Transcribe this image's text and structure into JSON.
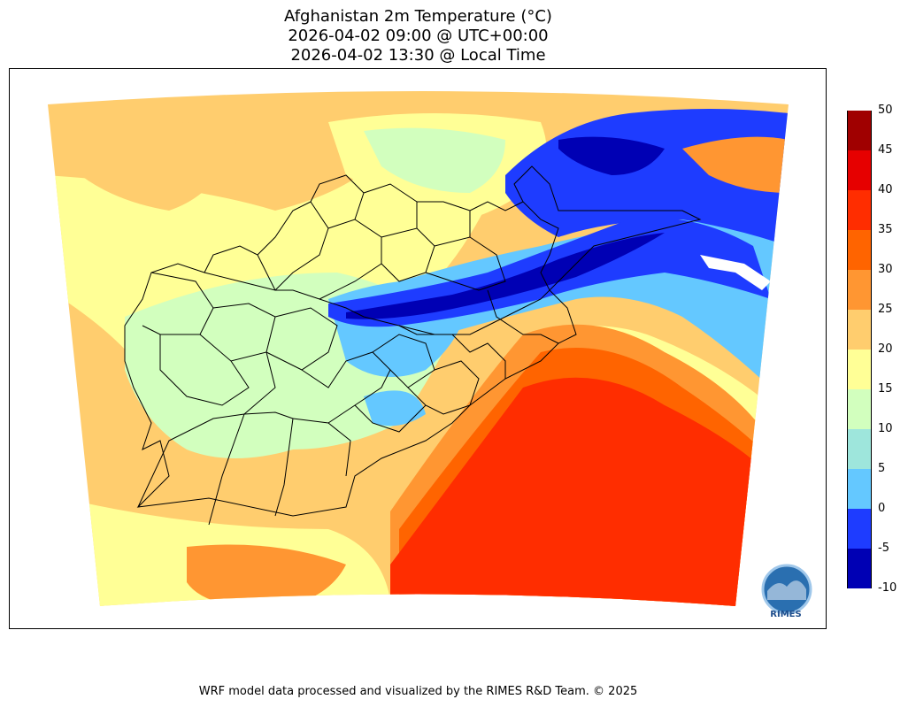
{
  "title": {
    "line1": "Afghanistan 2m Temperature (°C)",
    "line2": "2026-04-02 09:00 @ UTC+00:00",
    "line3": "2026-04-02 13:30 @ Local Time"
  },
  "colorbar": {
    "ticks": [
      "50",
      "45",
      "40",
      "35",
      "30",
      "25",
      "20",
      "15",
      "10",
      "5",
      "0",
      "-5",
      "-10"
    ],
    "levels": [
      {
        "from": -10,
        "to": -5,
        "color": "#0000b4"
      },
      {
        "from": -5,
        "to": 0,
        "color": "#1e3cff"
      },
      {
        "from": 0,
        "to": 5,
        "color": "#64c8ff"
      },
      {
        "from": 5,
        "to": 10,
        "color": "#9ee6dc"
      },
      {
        "from": 10,
        "to": 15,
        "color": "#d2ffbe"
      },
      {
        "from": 15,
        "to": 20,
        "color": "#ffff96"
      },
      {
        "from": 20,
        "to": 25,
        "color": "#ffcd6e"
      },
      {
        "from": 25,
        "to": 30,
        "color": "#ff9632"
      },
      {
        "from": 30,
        "to": 35,
        "color": "#ff6400"
      },
      {
        "from": 35,
        "to": 40,
        "color": "#ff2d00"
      },
      {
        "from": 40,
        "to": 45,
        "color": "#e60000"
      },
      {
        "from": 45,
        "to": 50,
        "color": "#a00000"
      }
    ]
  },
  "logo": {
    "text": "RIMES",
    "ring_text": "Regional Integrated Multi-Hazard Early Warning System"
  },
  "credit": "WRF model data processed and visualized by the RIMES R&D Team. © 2025"
}
